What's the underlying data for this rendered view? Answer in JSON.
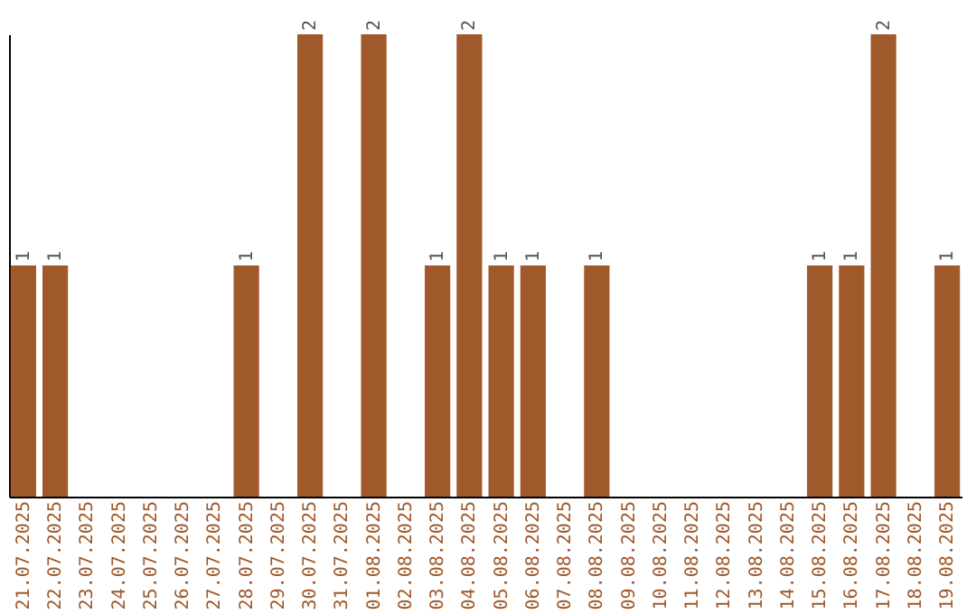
{
  "chart_data": {
    "type": "bar",
    "categories": [
      "21.07.2025",
      "22.07.2025",
      "23.07.2025",
      "24.07.2025",
      "25.07.2025",
      "26.07.2025",
      "27.07.2025",
      "28.07.2025",
      "29.07.2025",
      "30.07.2025",
      "31.07.2025",
      "01.08.2025",
      "02.08.2025",
      "03.08.2025",
      "04.08.2025",
      "05.08.2025",
      "06.08.2025",
      "07.08.2025",
      "08.08.2025",
      "09.08.2025",
      "10.08.2025",
      "11.08.2025",
      "12.08.2025",
      "13.08.2025",
      "14.08.2025",
      "15.08.2025",
      "16.08.2025",
      "17.08.2025",
      "18.08.2025",
      "19.08.2025"
    ],
    "values": [
      1,
      1,
      0,
      0,
      0,
      0,
      0,
      1,
      0,
      2,
      0,
      2,
      0,
      1,
      2,
      1,
      1,
      0,
      1,
      0,
      0,
      0,
      0,
      0,
      0,
      1,
      1,
      2,
      0,
      1
    ],
    "value_labels": [
      "1",
      "1",
      null,
      null,
      null,
      null,
      null,
      "1",
      null,
      "2",
      null,
      "2",
      null,
      "1",
      "2",
      "1",
      "1",
      null,
      "1",
      null,
      null,
      null,
      null,
      null,
      null,
      "1",
      "1",
      "2",
      null,
      "1"
    ],
    "color": "#a0592a",
    "ylim": [
      0,
      2
    ],
    "tick_labels": "x",
    "grid": false
  }
}
